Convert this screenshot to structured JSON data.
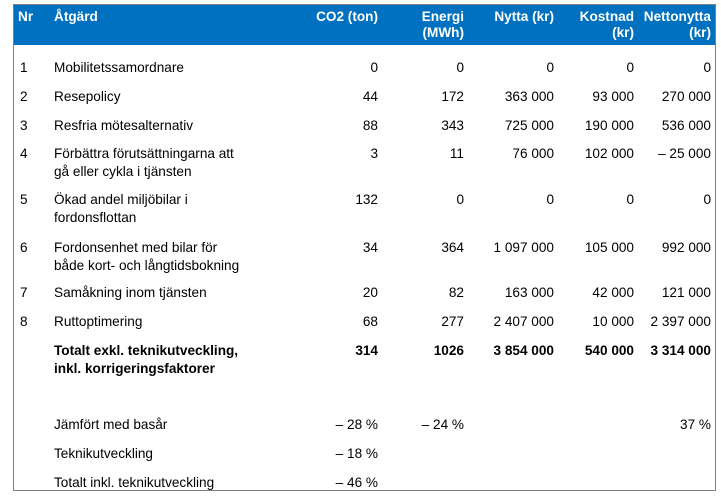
{
  "headers": {
    "nr": "Nr",
    "atgard": "Åtgärd",
    "co2_l1": "CO2 (ton)",
    "energi_l1": "Energi",
    "energi_l2": "(MWh)",
    "nytta_l1": "Nytta (kr)",
    "kostnad_l1": "Kostnad",
    "kostnad_l2": "(kr)",
    "netto_l1": "Nettonytta",
    "netto_l2": "(kr)"
  },
  "rows": [
    {
      "nr": "1",
      "l1": "Mobilitetssamordnare",
      "l2": "",
      "co2": "0",
      "energi": "0",
      "nytta": "0",
      "kostnad": "0",
      "netto": "0"
    },
    {
      "nr": "2",
      "l1": "Resepolicy",
      "l2": "",
      "co2": "44",
      "energi": "172",
      "nytta": "363 000",
      "kostnad": "93 000",
      "netto": "270 000"
    },
    {
      "nr": "3",
      "l1": "Resfria mötesalternativ",
      "l2": "",
      "co2": "88",
      "energi": "343",
      "nytta": "725 000",
      "kostnad": "190 000",
      "netto": "536 000"
    },
    {
      "nr": "4",
      "l1": "Förbättra förutsättningarna att",
      "l2": "gå eller cykla i tjänsten",
      "co2": "3",
      "energi": "11",
      "nytta": "76 000",
      "kostnad": "102 000",
      "netto": "– 25 000"
    },
    {
      "nr": "5",
      "l1": "Ökad andel miljöbilar i",
      "l2": "fordonsflottan",
      "co2": "132",
      "energi": "0",
      "nytta": "0",
      "kostnad": "0",
      "netto": "0"
    },
    {
      "nr": "6",
      "l1": "Fordonsenhet med bilar för",
      "l2": "både kort- och långtidsbokning",
      "co2": "34",
      "energi": "364",
      "nytta": "1 097 000",
      "kostnad": "105 000",
      "netto": "992 000"
    },
    {
      "nr": "7",
      "l1": "Samåkning inom tjänsten",
      "l2": "",
      "co2": "20",
      "energi": "82",
      "nytta": "163 000",
      "kostnad": "42 000",
      "netto": "121 000"
    },
    {
      "nr": "8",
      "l1": "Ruttoptimering",
      "l2": "",
      "co2": "68",
      "energi": "277",
      "nytta": "2 407 000",
      "kostnad": "10 000",
      "netto": "2 397 000"
    }
  ],
  "total": {
    "l1": "Totalt exkl. teknikutveckling,",
    "l2": "inkl. korrigeringsfaktorer",
    "co2": "314",
    "energi": "1026",
    "nytta": "3 854 000",
    "kostnad": "540 000",
    "netto": "3 314 000"
  },
  "compare": {
    "label": "Jämfört med basår",
    "co2": "– 28 %",
    "energi": "– 24 %",
    "netto": "37 %"
  },
  "teknik": {
    "label": "Teknikutveckling",
    "co2": "– 18 %"
  },
  "totalInkl": {
    "label": "Totalt inkl. teknikutveckling",
    "co2": "– 46 %"
  }
}
